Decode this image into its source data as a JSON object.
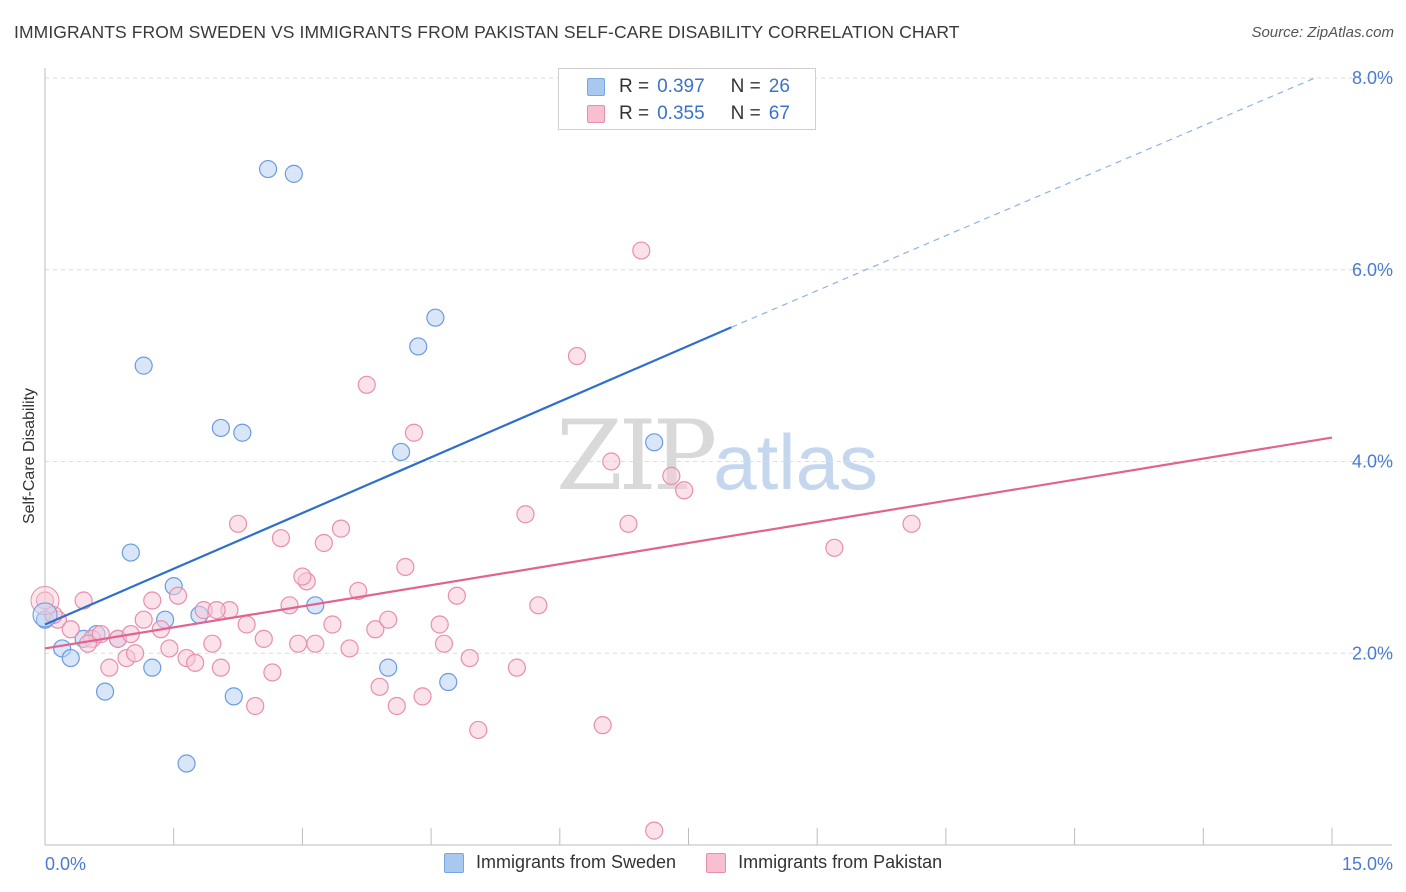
{
  "title": "IMMIGRANTS FROM SWEDEN VS IMMIGRANTS FROM PAKISTAN SELF-CARE DISABILITY CORRELATION CHART",
  "source": "Source: ZipAtlas.com",
  "watermark": {
    "zip": "ZIP",
    "atlas": "atlas"
  },
  "legend": {
    "r_label": "R =",
    "n_label": "N =",
    "rows": [
      {
        "r": "0.397",
        "n": "26",
        "color": "#a9c8f0",
        "border": "#7aa6e0"
      },
      {
        "r": "0.355",
        "n": "67",
        "color": "#f7bfd0",
        "border": "#e88fab"
      }
    ]
  },
  "bottom_legend": [
    {
      "label": "Immigrants from Sweden",
      "color": "#a9c8f0",
      "border": "#7aa6e0"
    },
    {
      "label": "Immigrants from Pakistan",
      "color": "#f7bfd0",
      "border": "#e88fab"
    }
  ],
  "chart_data": {
    "type": "scatter",
    "xlabel": "",
    "ylabel": "Self-Care Disability",
    "xlim": [
      0,
      15
    ],
    "ylim": [
      0,
      8
    ],
    "x_tick_labels": [
      "0.0%",
      "15.0%"
    ],
    "y_tick_labels": [
      "2.0%",
      "4.0%",
      "6.0%",
      "8.0%"
    ],
    "y_ticks": [
      2,
      4,
      6,
      8
    ],
    "grid": true,
    "legend_position": "top-center",
    "series": [
      {
        "name": "Immigrants from Sweden",
        "color": "#6a9be0",
        "fill": "#b9d2f3",
        "trend": {
          "x0": 0,
          "y0": 2.3,
          "x1": 8.0,
          "y1": 5.4,
          "dashed_to_x": 14.8,
          "dashed_to_y": 8.0,
          "color": "#2f6fcc"
        },
        "points": [
          [
            0.0,
            2.35
          ],
          [
            0.2,
            2.05
          ],
          [
            0.3,
            1.95
          ],
          [
            0.45,
            2.15
          ],
          [
            0.6,
            2.2
          ],
          [
            0.7,
            1.6
          ],
          [
            0.85,
            2.15
          ],
          [
            1.0,
            3.05
          ],
          [
            1.15,
            5.0
          ],
          [
            1.25,
            1.85
          ],
          [
            1.4,
            2.35
          ],
          [
            1.5,
            2.7
          ],
          [
            1.65,
            0.85
          ],
          [
            1.8,
            2.4
          ],
          [
            2.05,
            4.35
          ],
          [
            2.2,
            1.55
          ],
          [
            2.3,
            4.3
          ],
          [
            2.6,
            7.05
          ],
          [
            2.9,
            7.0
          ],
          [
            3.15,
            2.5
          ],
          [
            4.0,
            1.85
          ],
          [
            4.15,
            4.1
          ],
          [
            4.35,
            5.2
          ],
          [
            4.55,
            5.5
          ],
          [
            4.7,
            1.7
          ],
          [
            7.1,
            4.2
          ]
        ]
      },
      {
        "name": "Immigrants from Pakistan",
        "color": "#e88fab",
        "fill": "#f8c9d8",
        "trend": {
          "x0": 0,
          "y0": 2.05,
          "x1": 15.0,
          "y1": 4.25,
          "color": "#e0648f"
        },
        "points": [
          [
            0.0,
            2.55
          ],
          [
            0.15,
            2.35
          ],
          [
            0.3,
            2.25
          ],
          [
            0.45,
            2.55
          ],
          [
            0.55,
            2.15
          ],
          [
            0.65,
            2.2
          ],
          [
            0.75,
            1.85
          ],
          [
            0.85,
            2.15
          ],
          [
            0.95,
            1.95
          ],
          [
            1.05,
            2.0
          ],
          [
            1.15,
            2.35
          ],
          [
            1.25,
            2.55
          ],
          [
            1.35,
            2.25
          ],
          [
            1.45,
            2.05
          ],
          [
            1.55,
            2.6
          ],
          [
            1.65,
            1.95
          ],
          [
            1.75,
            1.9
          ],
          [
            1.85,
            2.45
          ],
          [
            1.95,
            2.1
          ],
          [
            2.05,
            1.85
          ],
          [
            2.15,
            2.45
          ],
          [
            2.25,
            3.35
          ],
          [
            2.35,
            2.3
          ],
          [
            2.45,
            1.45
          ],
          [
            2.55,
            2.15
          ],
          [
            2.65,
            1.8
          ],
          [
            2.75,
            3.2
          ],
          [
            2.85,
            2.5
          ],
          [
            2.95,
            2.1
          ],
          [
            3.05,
            2.75
          ],
          [
            3.15,
            2.1
          ],
          [
            3.25,
            3.15
          ],
          [
            3.35,
            2.3
          ],
          [
            3.45,
            3.3
          ],
          [
            3.55,
            2.05
          ],
          [
            3.65,
            2.65
          ],
          [
            3.75,
            4.8
          ],
          [
            3.85,
            2.25
          ],
          [
            3.9,
            1.65
          ],
          [
            4.0,
            2.35
          ],
          [
            4.1,
            1.45
          ],
          [
            4.2,
            2.9
          ],
          [
            4.3,
            4.3
          ],
          [
            4.4,
            1.55
          ],
          [
            4.65,
            2.1
          ],
          [
            4.8,
            2.6
          ],
          [
            4.95,
            1.95
          ],
          [
            5.05,
            1.2
          ],
          [
            5.5,
            1.85
          ],
          [
            5.6,
            3.45
          ],
          [
            5.75,
            2.5
          ],
          [
            6.2,
            5.1
          ],
          [
            6.5,
            1.25
          ],
          [
            6.6,
            4.0
          ],
          [
            6.8,
            3.35
          ],
          [
            6.95,
            6.2
          ],
          [
            7.1,
            0.15
          ],
          [
            7.3,
            3.85
          ],
          [
            7.45,
            3.7
          ],
          [
            9.2,
            3.1
          ],
          [
            10.1,
            3.35
          ],
          [
            0.1,
            2.4
          ],
          [
            0.5,
            2.1
          ],
          [
            1.0,
            2.2
          ],
          [
            2.0,
            2.45
          ],
          [
            3.0,
            2.8
          ],
          [
            4.6,
            2.3
          ]
        ]
      }
    ]
  }
}
